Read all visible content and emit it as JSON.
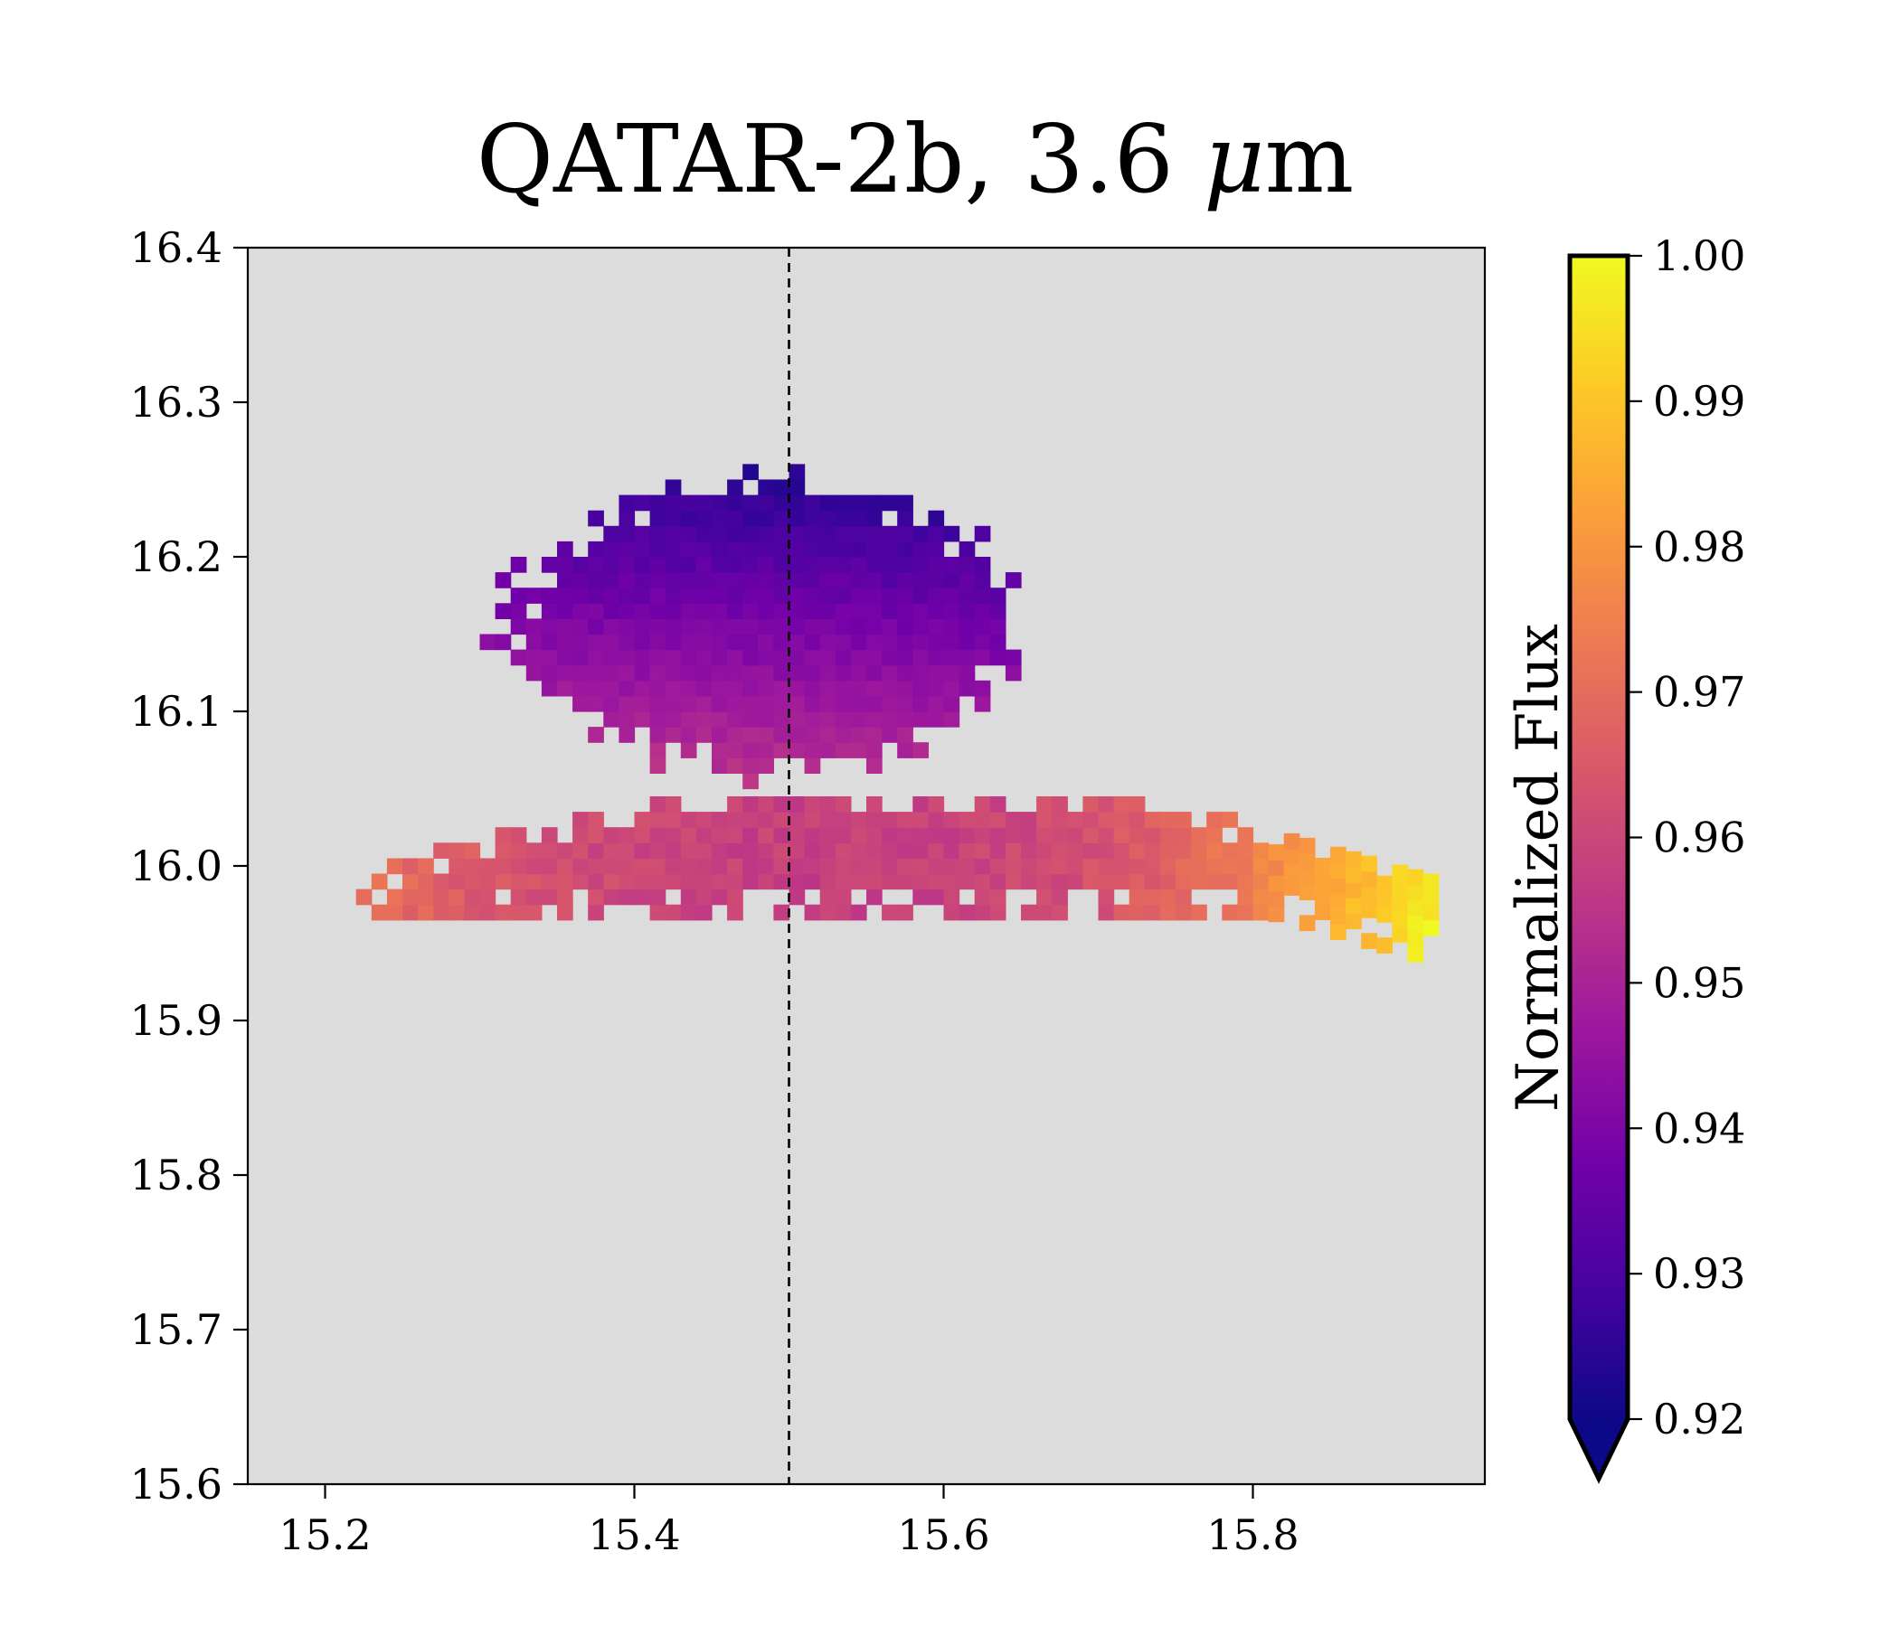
{
  "chart_data": {
    "type": "heatmap",
    "title_text": "QATAR-2b, 3.6 ",
    "title_symbol": "μ",
    "title_unit": "m",
    "xlim": [
      15.15,
      15.95
    ],
    "ylim": [
      15.6,
      16.4
    ],
    "x_ticks": [
      "15.2",
      "15.4",
      "15.6",
      "15.8"
    ],
    "x_tick_values": [
      15.2,
      15.4,
      15.6,
      15.8
    ],
    "y_ticks": [
      "15.6",
      "15.7",
      "15.8",
      "15.9",
      "16.0",
      "16.1",
      "16.2",
      "16.3",
      "16.4"
    ],
    "y_tick_values": [
      15.6,
      15.7,
      15.8,
      15.9,
      16.0,
      16.1,
      16.2,
      16.3,
      16.4
    ],
    "vertical_line_x": 15.5,
    "vertical_line_style": "dashed",
    "background_color": "#dcdcdc",
    "colormap": "plasma",
    "colorbar": {
      "label": "Normalized Flux",
      "vmin": 0.92,
      "vmax": 1.0,
      "extend": "min",
      "ticks": [
        "0.92",
        "0.93",
        "0.94",
        "0.95",
        "0.96",
        "0.97",
        "0.98",
        "0.99",
        "1.00"
      ],
      "tick_values": [
        0.92,
        0.93,
        0.94,
        0.95,
        0.96,
        0.97,
        0.98,
        0.99,
        1.0
      ]
    },
    "grid": false,
    "pixel_scale": 0.01,
    "regions": [
      {
        "name": "lobe",
        "x_range": [
          15.29,
          15.66
        ],
        "y_range": [
          16.04,
          16.26
        ],
        "flux_range": [
          0.925,
          0.96
        ]
      },
      {
        "name": "band",
        "x_range": [
          15.22,
          15.91
        ],
        "y_range": [
          15.95,
          16.05
        ],
        "flux_range": [
          0.955,
          1.0
        ]
      }
    ]
  },
  "colors": {
    "plasma": [
      "#0d0887",
      "#46039f",
      "#7201a8",
      "#9c179e",
      "#bd3786",
      "#d8576b",
      "#ed7953",
      "#fb9f3a",
      "#fdca26",
      "#f0f921"
    ]
  }
}
